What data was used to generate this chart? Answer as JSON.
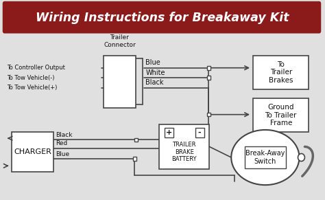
{
  "title": "Wiring Instructions for Breakaway Kit",
  "title_bg": "#8B1A1A",
  "title_text_color": "#FFFFFF",
  "diagram_bg": "#E0E0E0",
  "labels": {
    "controller": "To Controller Output",
    "tow_neg": "To Tow Vehicle(-)",
    "tow_pos": "To Tow Vehicle(+)",
    "trailer_connector": "Trailer\nConnector",
    "blue": "Blue",
    "white": "White",
    "black_wire": "Black",
    "to_brakes": "To\nTrailer\nBrakes",
    "ground": "Ground\nTo Trailer\nFrame",
    "charger": "CHARGER",
    "charger_black": "Black",
    "charger_red": "Red",
    "charger_blue": "Blue",
    "battery": "TRAILER\nBRAKE\nBATTERY",
    "breakaway": "Break-Away\nSwitch"
  },
  "figsize": [
    4.74,
    2.91
  ],
  "dpi": 100
}
